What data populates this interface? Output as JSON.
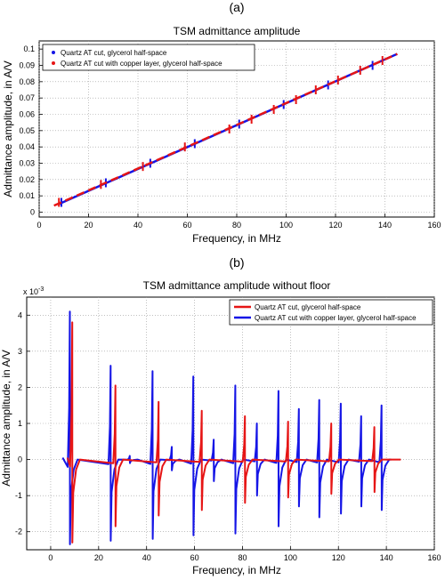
{
  "charts": [
    {
      "panel_label": "(a)",
      "title": "TSM admittance amplitude",
      "xlabel": "Frequency, in MHz",
      "ylabel": "Admittance amplitude, in A/V",
      "x_ticks": [
        "0",
        "20",
        "40",
        "60",
        "80",
        "100",
        "120",
        "140",
        "160"
      ],
      "y_ticks": [
        "0",
        "0.01",
        "0.02",
        "0.03",
        "0.04",
        "0.05",
        "0.06",
        "0.07",
        "0.08",
        "0.09",
        "0.1"
      ],
      "legend": [
        {
          "label": "Quartz AT cut, glycerol half-space",
          "color": "#1515e6"
        },
        {
          "label": "Quartz AT cut with copper layer, glycerol half-space",
          "color": "#e61515"
        }
      ]
    },
    {
      "panel_label": "(b)",
      "title": "TSM admittance amplitude without floor",
      "xlabel": "Frequency, in MHz",
      "ylabel": "Admittance amplitude, in A/V",
      "multiplier": "x 10",
      "multiplier_exp": "-3",
      "x_ticks": [
        "0",
        "20",
        "40",
        "60",
        "80",
        "100",
        "120",
        "140",
        "160"
      ],
      "y_ticks": [
        "-2",
        "-1",
        "0",
        "1",
        "2",
        "3",
        "4"
      ],
      "legend": [
        {
          "label": "Quartz AT cut, glycerol half-space",
          "color": "#e61515"
        },
        {
          "label": "Quartz AT cut with copper layer, glycerol half-space",
          "color": "#1515e6"
        }
      ]
    }
  ],
  "chart_data": [
    {
      "type": "line",
      "title": "TSM admittance amplitude",
      "xlabel": "Frequency, in MHz",
      "ylabel": "Admittance amplitude, in A/V",
      "xlim": [
        0,
        160
      ],
      "ylim": [
        -0.003,
        0.105
      ],
      "grid": true,
      "legend_position": "top-left",
      "series": [
        {
          "name": "Quartz AT cut, glycerol half-space",
          "color": "#1515e6",
          "line": {
            "x": [
              8,
              145
            ],
            "y": [
              0.005,
              0.097
            ]
          },
          "resonances": [
            {
              "x": 9,
              "y": 0.006
            },
            {
              "x": 27,
              "y": 0.018
            },
            {
              "x": 45,
              "y": 0.03
            },
            {
              "x": 63,
              "y": 0.042
            },
            {
              "x": 81,
              "y": 0.054
            },
            {
              "x": 99,
              "y": 0.066
            },
            {
              "x": 117,
              "y": 0.078
            },
            {
              "x": 135,
              "y": 0.09
            }
          ]
        },
        {
          "name": "Quartz AT cut with copper layer, glycerol half-space",
          "color": "#e61515",
          "line": {
            "x": [
              6,
              145
            ],
            "y": [
              0.004,
              0.097
            ]
          },
          "resonances": [
            {
              "x": 8,
              "y": 0.006
            },
            {
              "x": 25,
              "y": 0.017
            },
            {
              "x": 42,
              "y": 0.028
            },
            {
              "x": 59,
              "y": 0.04
            },
            {
              "x": 77,
              "y": 0.051
            },
            {
              "x": 86,
              "y": 0.057
            },
            {
              "x": 95,
              "y": 0.063
            },
            {
              "x": 104,
              "y": 0.069
            },
            {
              "x": 112,
              "y": 0.075
            },
            {
              "x": 121,
              "y": 0.081
            },
            {
              "x": 130,
              "y": 0.087
            },
            {
              "x": 139,
              "y": 0.093
            }
          ]
        }
      ]
    },
    {
      "type": "line",
      "title": "TSM admittance amplitude without floor",
      "xlabel": "Frequency, in MHz",
      "ylabel": "Admittance amplitude, in A/V",
      "y_multiplier": "x 10^-3",
      "xlim": [
        -10,
        160
      ],
      "ylim": [
        -2.5,
        4.5
      ],
      "grid": true,
      "legend_position": "top-right",
      "series": [
        {
          "name": "Quartz AT cut, glycerol half-space",
          "color": "#e61515",
          "x_range": [
            7,
            146
          ],
          "resonances": [
            {
              "x": 9.0,
              "peak": 3.8,
              "trough": -2.3
            },
            {
              "x": 27.0,
              "peak": 2.05,
              "trough": -1.85
            },
            {
              "x": 45.0,
              "peak": 1.6,
              "trough": -1.55
            },
            {
              "x": 63.0,
              "peak": 1.35,
              "trough": -1.4
            },
            {
              "x": 81.0,
              "peak": 1.2,
              "trough": -1.2
            },
            {
              "x": 99.0,
              "peak": 1.05,
              "trough": -1.05
            },
            {
              "x": 117.0,
              "peak": 1.0,
              "trough": -0.95
            },
            {
              "x": 135.0,
              "peak": 0.9,
              "trough": -0.9
            }
          ]
        },
        {
          "name": "Quartz AT cut with copper layer, glycerol half-space",
          "color": "#1515e6",
          "x_range": [
            5,
            142
          ],
          "resonances": [
            {
              "x": 8.0,
              "peak": 4.1,
              "trough": -2.35
            },
            {
              "x": 25.0,
              "peak": 2.6,
              "trough": -2.25
            },
            {
              "x": 33.0,
              "peak": 0.1,
              "trough": -0.1
            },
            {
              "x": 42.5,
              "peak": 2.45,
              "trough": -2.2
            },
            {
              "x": 50.5,
              "peak": 0.35,
              "trough": -0.3
            },
            {
              "x": 59.5,
              "peak": 2.3,
              "trough": -2.1
            },
            {
              "x": 68.0,
              "peak": 0.55,
              "trough": -0.6
            },
            {
              "x": 77.0,
              "peak": 2.05,
              "trough": -2.05
            },
            {
              "x": 86.0,
              "peak": 1.0,
              "trough": -1.0
            },
            {
              "x": 95.0,
              "peak": 1.9,
              "trough": -1.85
            },
            {
              "x": 103.5,
              "peak": 1.4,
              "trough": -1.3
            },
            {
              "x": 112.0,
              "peak": 1.65,
              "trough": -1.6
            },
            {
              "x": 121.0,
              "peak": 1.55,
              "trough": -1.5
            },
            {
              "x": 129.5,
              "peak": 1.2,
              "trough": -1.3
            },
            {
              "x": 138.0,
              "peak": 1.5,
              "trough": -1.4
            }
          ]
        }
      ]
    }
  ]
}
